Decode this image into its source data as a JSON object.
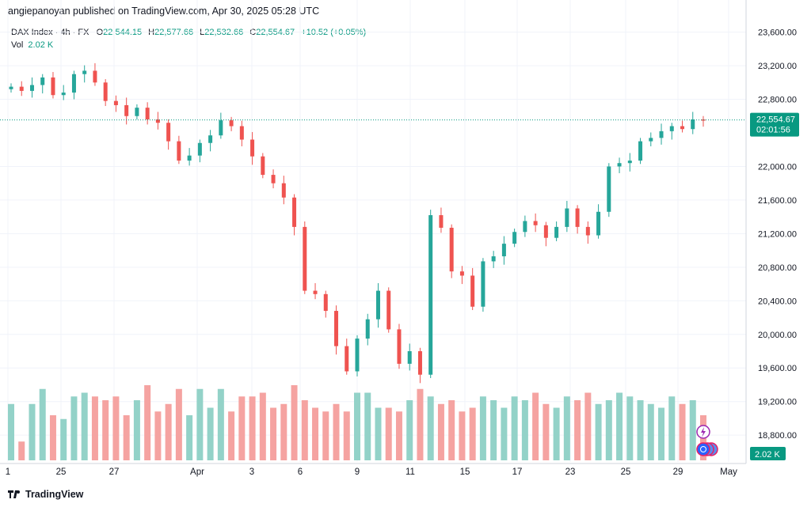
{
  "header": {
    "publisher": "angiepanoyan published on TradingView.com, Apr 30, 2025 05:28 UTC"
  },
  "legend": {
    "symbol": "DAX Index · 4h · FX",
    "open_label": "O",
    "open": "22,544.15",
    "high_label": "H",
    "high": "22,577.66",
    "low_label": "L",
    "low": "22,532.66",
    "close_label": "C",
    "close": "22,554.67",
    "change": "+10.52 (+0.05%)",
    "vol_label": "Vol",
    "vol_value": "2.02 K"
  },
  "price_scale": {
    "labels": [
      "23,600.00",
      "23,200.00",
      "22,800.00",
      "22,000.00",
      "21,600.00",
      "21,200.00",
      "20,800.00",
      "20,400.00",
      "20,000.00",
      "19,600.00",
      "19,200.00",
      "18,800.00"
    ],
    "current_price": "22,554.67",
    "countdown": "02:01:56",
    "volume_badge": "2.02 K"
  },
  "time_axis": {
    "labels": [
      "1",
      "25",
      "27",
      "Apr",
      "3",
      "6",
      "9",
      "11",
      "15",
      "17",
      "23",
      "25",
      "29",
      "May"
    ]
  },
  "footer": {
    "brand": "TradingView"
  },
  "colors": {
    "up": "#26a69a",
    "down": "#ef5350",
    "vol_up": "#93d2c8",
    "vol_down": "#f5a3a1",
    "price_line": "#089981",
    "grid": "#f0f3fa",
    "axis_text": "#131722"
  },
  "chart_data": {
    "type": "candlestick",
    "ylim": [
      18500,
      23700
    ],
    "close_y": [
      22950,
      22900,
      22970,
      23060,
      22850,
      22880,
      23100,
      23140,
      23000,
      22780,
      22730,
      22600,
      22700,
      22560,
      22520,
      22300,
      22070,
      22130,
      22280,
      22370,
      22550,
      22480,
      22320,
      22120,
      21900,
      21800,
      21630,
      21280,
      20520,
      20480,
      20280,
      19860,
      19560,
      19950,
      20180,
      20520,
      20060,
      19650,
      19800,
      19520,
      21420,
      21270,
      20750,
      20700,
      20330,
      20870,
      20930,
      21080,
      21220,
      21350,
      21300,
      21150,
      21280,
      21500,
      21280,
      21180,
      21460,
      22000,
      22040,
      22070,
      22300,
      22340,
      22420,
      22480,
      22445,
      22560,
      22554.67
    ],
    "volume_relative": [
      0.75,
      0.25,
      0.75,
      0.95,
      0.6,
      0.55,
      0.85,
      0.9,
      0.85,
      0.8,
      0.85,
      0.6,
      0.8,
      1.0,
      0.65,
      0.75,
      0.95,
      0.6,
      0.95,
      0.7,
      0.95,
      0.65,
      0.85,
      0.85,
      0.9,
      0.7,
      0.75,
      1.0,
      0.8,
      0.7,
      0.65,
      0.75,
      0.65,
      0.9,
      0.9,
      0.7,
      0.7,
      0.65,
      0.8,
      0.95,
      0.85,
      0.75,
      0.8,
      0.65,
      0.7,
      0.85,
      0.8,
      0.7,
      0.85,
      0.8,
      0.9,
      0.75,
      0.7,
      0.85,
      0.8,
      0.9,
      0.75,
      0.8,
      0.9,
      0.85,
      0.8,
      0.75,
      0.7,
      0.85,
      0.75,
      0.8,
      0.6
    ]
  }
}
